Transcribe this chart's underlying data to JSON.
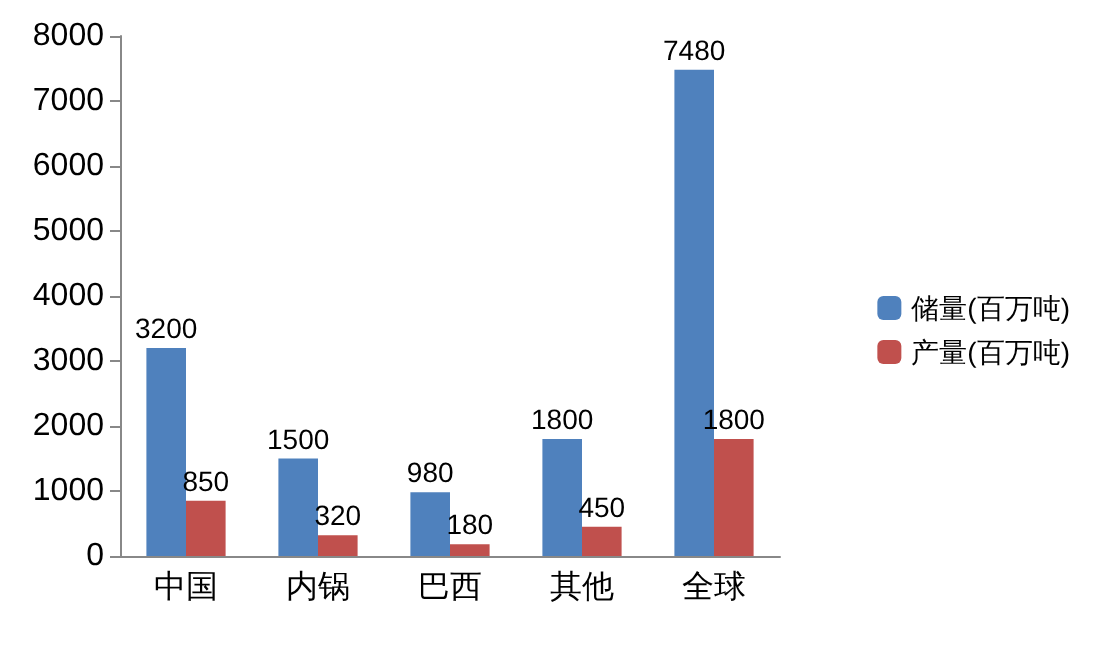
{
  "chart_data": {
    "type": "bar",
    "categories": [
      "中国",
      "内锅",
      "巴西",
      "其他",
      "全球"
    ],
    "series": [
      {
        "name": "储量(百万吨)",
        "color": "#4f81bd",
        "values": [
          3200,
          1500,
          980,
          1800,
          7480
        ]
      },
      {
        "name": "产量(百万吨)",
        "color": "#c0504d",
        "values": [
          850,
          320,
          180,
          450,
          1800
        ]
      }
    ],
    "ylim": [
      0,
      8000
    ],
    "yticks": [
      0,
      1000,
      2000,
      3000,
      4000,
      5000,
      6000,
      7000,
      8000
    ],
    "grid": false,
    "legend": "right",
    "data_labels": true
  }
}
